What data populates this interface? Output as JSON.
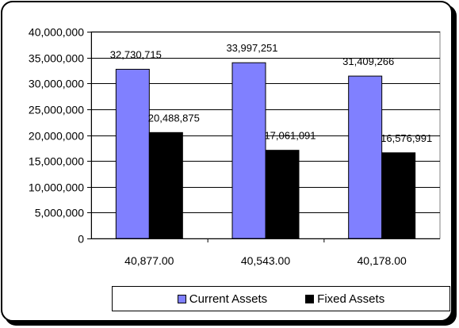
{
  "chart_data": {
    "type": "bar",
    "categories": [
      "40,877.00",
      "40,543.00",
      "40,178.00"
    ],
    "series": [
      {
        "name": "Current Assets",
        "color": "#8080ff",
        "values": [
          32730715,
          33997251,
          31409266
        ],
        "labels": [
          "32,730,715",
          "33,997,251",
          "31,409,266"
        ]
      },
      {
        "name": "Fixed Assets",
        "color": "#000000",
        "values": [
          20488875,
          17061091,
          16576991
        ],
        "labels": [
          "20,488,875",
          "17,061,091",
          "16,576,991"
        ]
      }
    ],
    "yticks": [
      "0",
      "5,000,000",
      "10,000,000",
      "15,000,000",
      "20,000,000",
      "25,000,000",
      "30,000,000",
      "35,000,000",
      "40,000,000"
    ],
    "ylim": [
      0,
      40000000
    ],
    "title": "",
    "xlabel": "",
    "ylabel": "",
    "grid": true,
    "legend_position": "bottom-right",
    "plot_background": "#ffffff"
  }
}
